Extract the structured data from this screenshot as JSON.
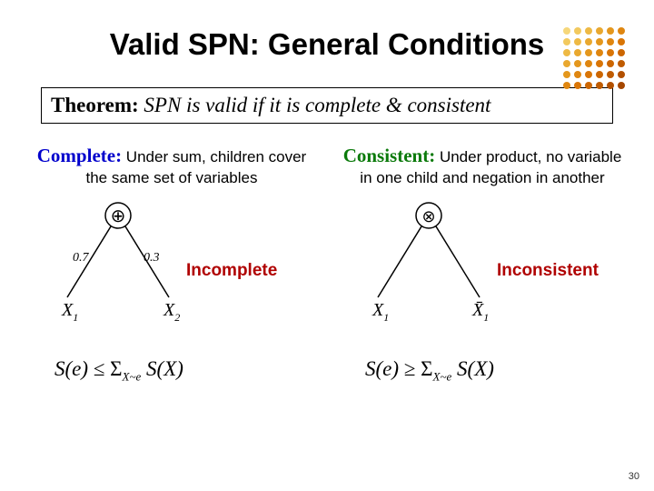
{
  "title": "Valid SPN: General Conditions",
  "dot_grid": {
    "rows": 6,
    "cols": 6,
    "colors": [
      "#f6d77a",
      "#f2c95e",
      "#eeb944",
      "#e9a82f",
      "#e4971d",
      "#df8610",
      "#f2c95e",
      "#eeb944",
      "#e9a82f",
      "#e4971d",
      "#df8610",
      "#d97506",
      "#eeb944",
      "#e9a82f",
      "#e4971d",
      "#df8610",
      "#d97506",
      "#cc6600",
      "#e9a82f",
      "#e4971d",
      "#df8610",
      "#d97506",
      "#cc6600",
      "#bf5b00",
      "#e4971d",
      "#df8610",
      "#d97506",
      "#cc6600",
      "#bf5b00",
      "#b25000",
      "#df8610",
      "#d97506",
      "#cc6600",
      "#bf5b00",
      "#b25000",
      "#a54700"
    ]
  },
  "theorem": {
    "label": "Theorem:",
    "body": " SPN is valid if it is complete & consistent"
  },
  "left": {
    "term": "Complete:",
    "desc": " Under sum, children cover the same set of variables",
    "tree_label": "Incomplete",
    "node_symbol": "⊕",
    "edge_weights": [
      "0.7",
      "0.3"
    ],
    "leaves": [
      "X",
      "X"
    ],
    "leaf_subs": [
      "1",
      "2"
    ],
    "formula_parts": {
      "lhs": "S(e)",
      "rel": " ≤ ",
      "sigma": "Σ",
      "sub": "X~e",
      "rhs": " S(X)"
    },
    "term_color": "#0000cc"
  },
  "right": {
    "term": "Consistent:",
    "desc": " Under product, no variable in one child and negation in another",
    "tree_label": "Inconsistent",
    "node_symbol": "⊗",
    "leaves": [
      "X",
      "X̄"
    ],
    "leaf_subs": [
      "1",
      "1"
    ],
    "formula_parts": {
      "lhs": "S(e)",
      "rel": " ≥ ",
      "sigma": "Σ",
      "sub": "X~e",
      "rhs": " S(X)"
    },
    "term_color": "#0b7a0b"
  },
  "colors": {
    "tree_label": "#b00000",
    "stroke": "#000000"
  },
  "slide_number": "30"
}
